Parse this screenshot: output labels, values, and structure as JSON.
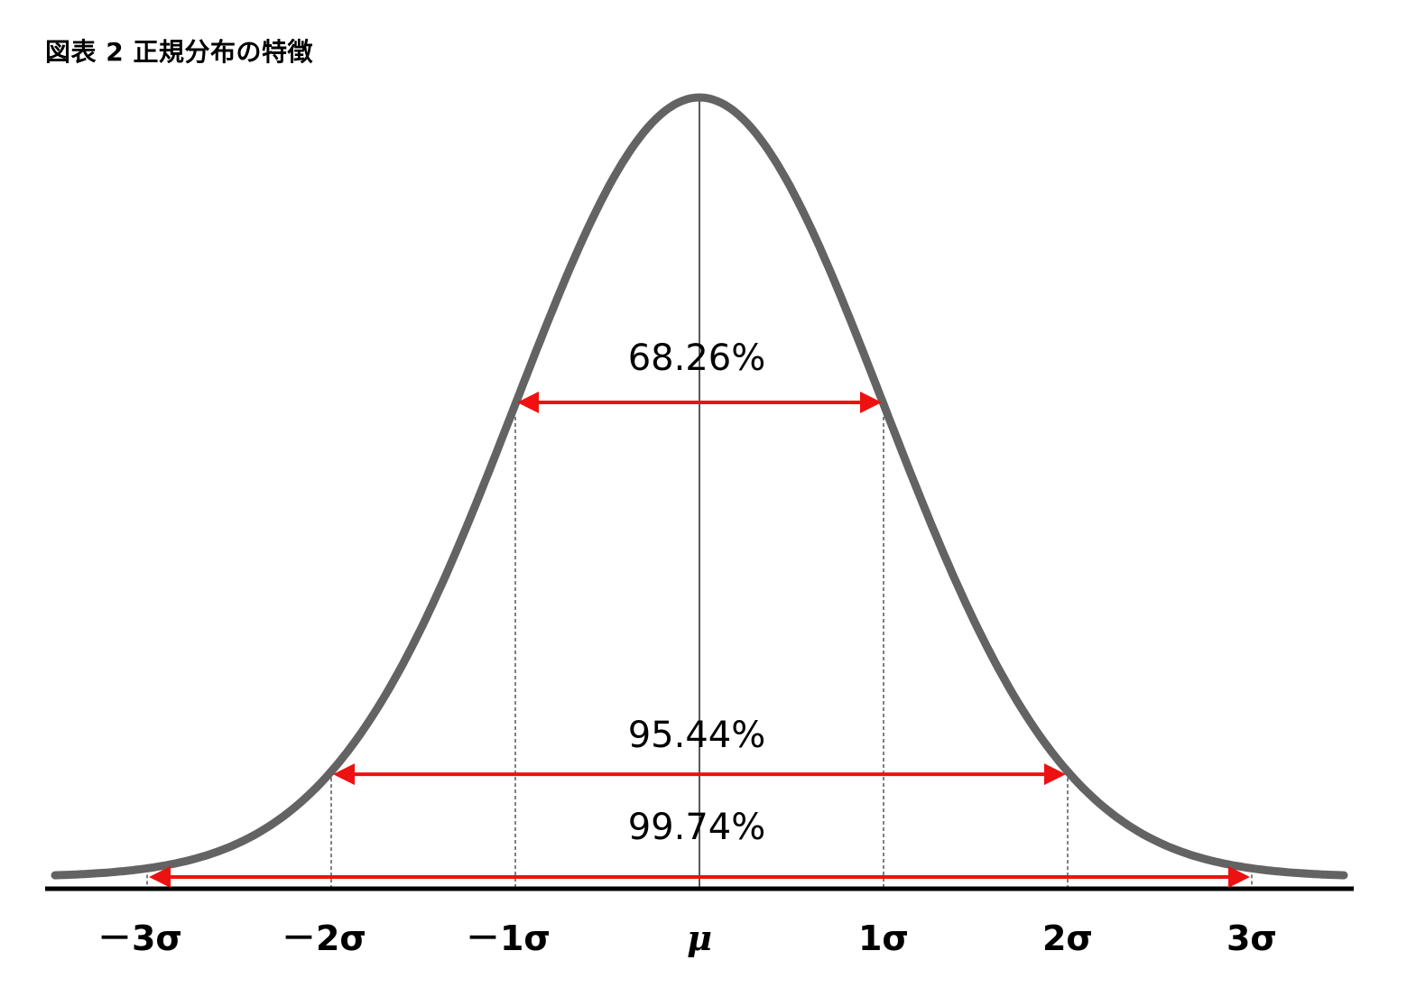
{
  "title": "図表 2  正規分布の特徴",
  "chart_data": {
    "type": "line",
    "distribution": "normal",
    "mean": 0,
    "sd": 1,
    "curve_color": "#636363",
    "arrow_color": "#ee1111",
    "xlim": [
      -3.5,
      3.5
    ],
    "x_ticks": [
      {
        "x": -3,
        "label": "－3σ"
      },
      {
        "x": -2,
        "label": "－2σ"
      },
      {
        "x": -1,
        "label": "－1σ"
      },
      {
        "x": 0,
        "label": "μ"
      },
      {
        "x": 1,
        "label": "1σ"
      },
      {
        "x": 2,
        "label": "2σ"
      },
      {
        "x": 3,
        "label": "3σ"
      }
    ],
    "intervals": [
      {
        "from": -1,
        "to": 1,
        "label": "68.26%"
      },
      {
        "from": -2,
        "to": 2,
        "label": "95.44%"
      },
      {
        "from": -3,
        "to": 3,
        "label": "99.74%"
      }
    ]
  }
}
